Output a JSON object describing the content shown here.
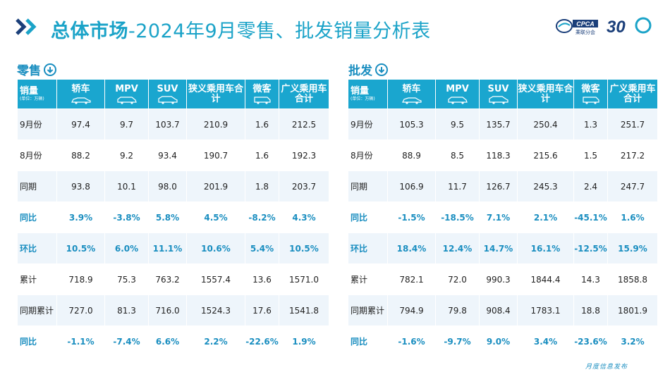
{
  "header": {
    "title_bold": "总体市场",
    "title_rest": "-2024年9月零售、批发销量分析表",
    "logo_text": "CPCA",
    "logo_sub": "乘联分会",
    "anniv_text": "30"
  },
  "retail": {
    "label": "零售",
    "corner": "销量",
    "unit": "(单位：万辆)",
    "columns": [
      "轿车",
      "MPV",
      "SUV",
      "狭义乘用车合计",
      "微客",
      "广义乘用车合计"
    ],
    "rows": [
      {
        "name": "9月份",
        "values": [
          "97.4",
          "9.7",
          "103.7",
          "210.9",
          "1.6",
          "212.5"
        ],
        "pct": false
      },
      {
        "name": "8月份",
        "values": [
          "88.2",
          "9.2",
          "93.4",
          "190.7",
          "1.6",
          "192.3"
        ],
        "pct": false
      },
      {
        "name": "同期",
        "values": [
          "93.8",
          "10.1",
          "98.0",
          "201.9",
          "1.8",
          "203.7"
        ],
        "pct": false
      },
      {
        "name": "同比",
        "values": [
          "3.9%",
          "-3.8%",
          "5.8%",
          "4.5%",
          "-8.2%",
          "4.3%"
        ],
        "pct": true
      },
      {
        "name": "环比",
        "values": [
          "10.5%",
          "6.0%",
          "11.1%",
          "10.6%",
          "5.4%",
          "10.5%"
        ],
        "pct": true
      },
      {
        "name": "累计",
        "values": [
          "718.9",
          "75.3",
          "763.2",
          "1557.4",
          "13.6",
          "1571.0"
        ],
        "pct": false
      },
      {
        "name": "同期累计",
        "values": [
          "727.0",
          "81.3",
          "716.0",
          "1524.3",
          "17.6",
          "1541.8"
        ],
        "pct": false
      },
      {
        "name": "同比",
        "values": [
          "-1.1%",
          "-7.4%",
          "6.6%",
          "2.2%",
          "-22.6%",
          "1.9%"
        ],
        "pct": true
      }
    ]
  },
  "wholesale": {
    "label": "批发",
    "corner": "销量",
    "unit": "(单位：万辆)",
    "columns": [
      "轿车",
      "MPV",
      "SUV",
      "狭义乘用车合计",
      "微客",
      "广义乘用车合计"
    ],
    "rows": [
      {
        "name": "9月份",
        "values": [
          "105.3",
          "9.5",
          "135.7",
          "250.4",
          "1.3",
          "251.7"
        ],
        "pct": false
      },
      {
        "name": "8月份",
        "values": [
          "88.9",
          "8.5",
          "118.3",
          "215.6",
          "1.5",
          "217.2"
        ],
        "pct": false
      },
      {
        "name": "同期",
        "values": [
          "106.9",
          "11.7",
          "126.7",
          "245.3",
          "2.4",
          "247.7"
        ],
        "pct": false
      },
      {
        "name": "同比",
        "values": [
          "-1.5%",
          "-18.5%",
          "7.1%",
          "2.1%",
          "-45.1%",
          "1.6%"
        ],
        "pct": true
      },
      {
        "name": "环比",
        "values": [
          "18.4%",
          "12.4%",
          "14.7%",
          "16.1%",
          "-12.5%",
          "15.9%"
        ],
        "pct": true
      },
      {
        "name": "累计",
        "values": [
          "782.1",
          "72.0",
          "990.3",
          "1844.4",
          "14.3",
          "1858.8"
        ],
        "pct": false
      },
      {
        "name": "同期累计",
        "values": [
          "794.9",
          "79.8",
          "908.4",
          "1783.1",
          "18.8",
          "1801.9"
        ],
        "pct": false
      },
      {
        "name": "同比",
        "values": [
          "-1.6%",
          "-9.7%",
          "9.0%",
          "3.4%",
          "-23.6%",
          "3.2%"
        ],
        "pct": true
      }
    ]
  },
  "footer": {
    "tag": "月度信息发布"
  },
  "colors": {
    "accent": "#1aa6cf",
    "accent_dark": "#1a8ec0",
    "row_alt": "#eef5fb"
  }
}
